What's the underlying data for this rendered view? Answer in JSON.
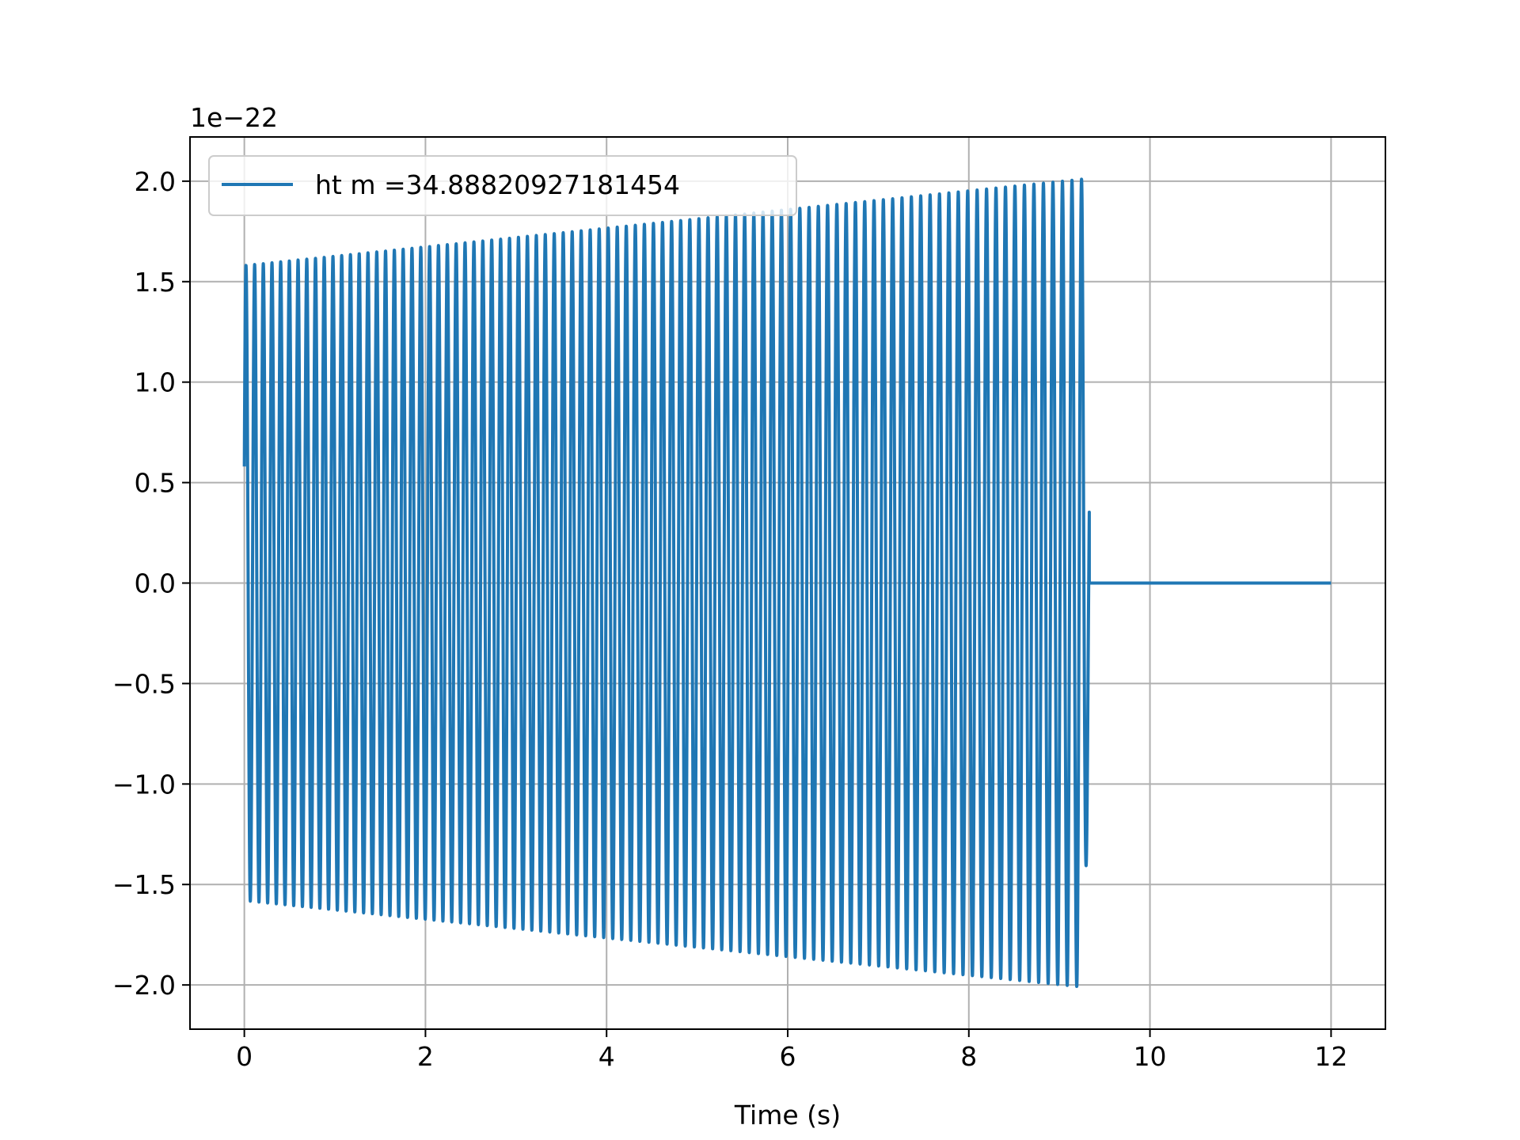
{
  "chart_data": {
    "type": "line",
    "title": "",
    "xlabel": "Time (s)",
    "ylabel": "",
    "y_scale_label": "1e−22",
    "xlim": [
      -0.6,
      12.6
    ],
    "ylim": [
      -2.22,
      2.22
    ],
    "x_ticks": [
      0,
      2,
      4,
      6,
      8,
      10,
      12
    ],
    "x_tick_labels": [
      "0",
      "2",
      "4",
      "6",
      "8",
      "10",
      "12"
    ],
    "y_ticks": [
      2.0,
      1.5,
      1.0,
      0.5,
      0.0,
      -0.5,
      -1.0,
      -1.5,
      -2.0
    ],
    "y_tick_labels": [
      "2.0",
      "1.5",
      "1.0",
      "0.5",
      "0.0",
      "−0.5",
      "−1.0",
      "−1.5",
      "−2.0"
    ],
    "grid": true,
    "legend_position": "upper-left",
    "series": [
      {
        "name": "ht m =34.88820927181454",
        "color": "#1f77b4",
        "oscillation_start": 0.0,
        "oscillation_end": 9.33,
        "series_end": 12.0,
        "initial_value": 0.58,
        "cycles": 93,
        "amplitude_envelope": {
          "t": [
            0.0,
            9.25,
            9.33
          ],
          "a": [
            1.58,
            2.01,
            0.96
          ]
        },
        "tail_value": 0.0
      }
    ]
  }
}
